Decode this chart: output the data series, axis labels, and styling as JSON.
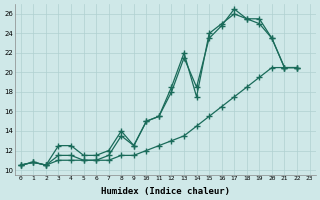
{
  "background_color": "#cfe8e8",
  "grid_color": "#b0d0d0",
  "line_color": "#1a6b5a",
  "xlabel": "Humidex (Indice chaleur)",
  "xlim": [
    -0.5,
    23.5
  ],
  "ylim": [
    9.5,
    27
  ],
  "yticks": [
    10,
    12,
    14,
    16,
    18,
    20,
    22,
    24,
    26
  ],
  "xticks": [
    0,
    1,
    2,
    3,
    4,
    5,
    6,
    7,
    8,
    9,
    10,
    11,
    12,
    13,
    14,
    15,
    16,
    17,
    18,
    19,
    20,
    21,
    22,
    23
  ],
  "series1_x": [
    0,
    1,
    2,
    3,
    4,
    5,
    6,
    7,
    8,
    9,
    10,
    11,
    12,
    13,
    14,
    15,
    16,
    17,
    18,
    19,
    20,
    21,
    22
  ],
  "series1_y": [
    10.5,
    10.8,
    10.5,
    11.0,
    11.0,
    11.0,
    11.0,
    11.0,
    11.5,
    11.5,
    12.0,
    12.5,
    13.0,
    13.5,
    14.5,
    15.5,
    16.5,
    17.5,
    18.5,
    19.5,
    20.5,
    20.5,
    20.5
  ],
  "series2_x": [
    0,
    1,
    2,
    3,
    4,
    5,
    6,
    7,
    8,
    9,
    10,
    11,
    12,
    13,
    14,
    15,
    16,
    17,
    18,
    19,
    20,
    21,
    22
  ],
  "series2_y": [
    10.5,
    10.8,
    10.5,
    11.5,
    11.5,
    11.0,
    11.0,
    11.5,
    13.5,
    12.5,
    15.0,
    15.5,
    18.0,
    21.5,
    18.5,
    23.5,
    24.8,
    26.5,
    25.5,
    25.5,
    23.5,
    20.5,
    20.5
  ],
  "series3_x": [
    0,
    1,
    2,
    3,
    4,
    5,
    6,
    7,
    8,
    9,
    10,
    11,
    12,
    13,
    14,
    15,
    16,
    17,
    18,
    19,
    20,
    21,
    22
  ],
  "series3_y": [
    10.5,
    10.8,
    10.5,
    12.5,
    12.5,
    11.5,
    11.5,
    12.0,
    14.0,
    12.5,
    15.0,
    15.5,
    18.5,
    22.0,
    17.5,
    24.0,
    25.0,
    26.0,
    25.5,
    25.0,
    23.5,
    20.5,
    20.5
  ]
}
